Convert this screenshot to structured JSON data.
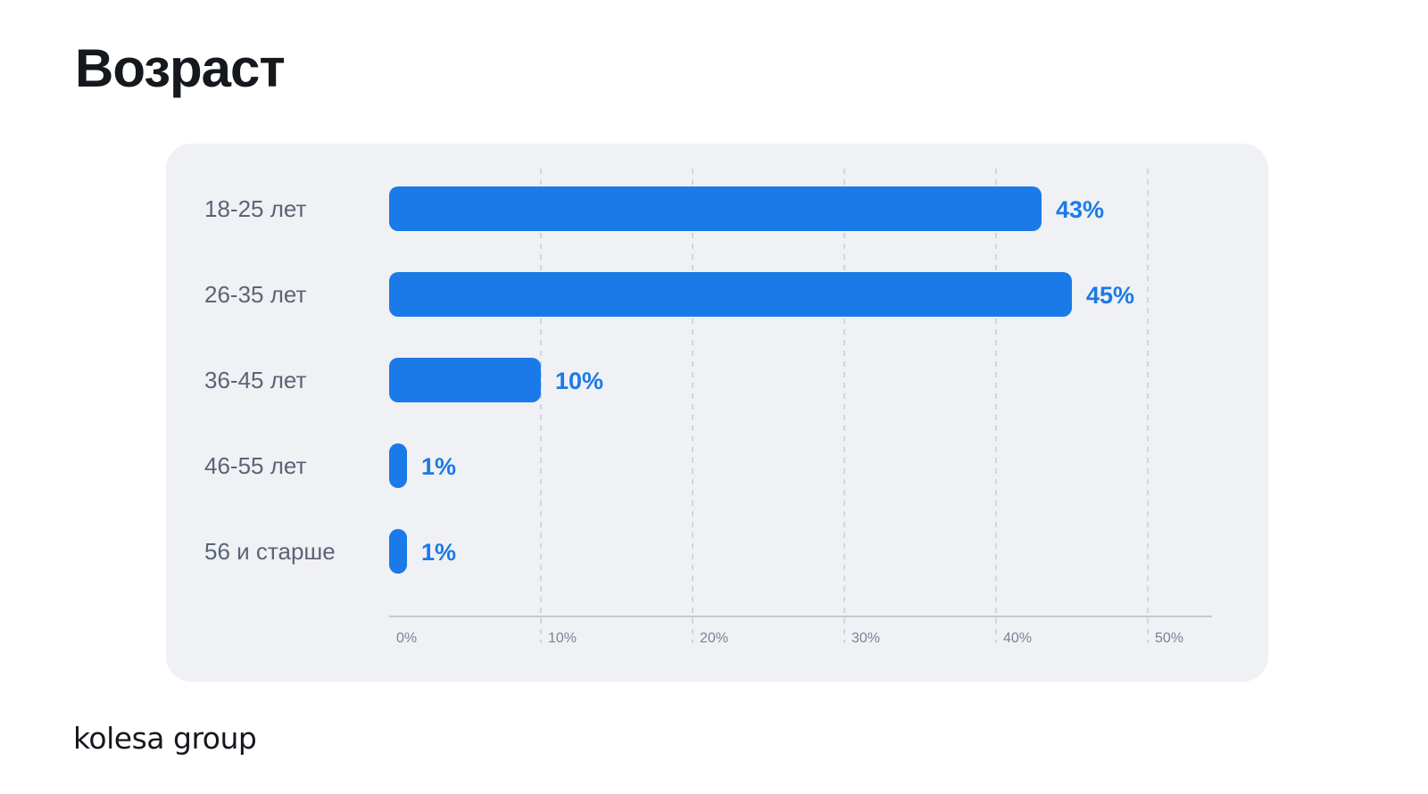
{
  "page": {
    "title": "Возраст",
    "logo": "kolesa group"
  },
  "colors": {
    "bar": "#1a7ae8",
    "value_label": "#1a7ae8",
    "category_label": "#5b6476",
    "grid": "#c9ccd3",
    "axis": "#b8bcc5",
    "card_background": "#f0f1f4",
    "title": "#15181d"
  },
  "chart_data": {
    "type": "bar",
    "orientation": "horizontal",
    "categories": [
      "18-25 лет",
      "26-35 лет",
      "36-45 лет",
      "46-55 лет",
      "56 и старше"
    ],
    "values": [
      43,
      45,
      10,
      1,
      1
    ],
    "value_labels": [
      "43%",
      "45%",
      "10%",
      "1%",
      "1%"
    ],
    "xlim": [
      0,
      50
    ],
    "x_ticks": [
      0,
      10,
      20,
      30,
      40,
      50
    ],
    "x_tick_labels": [
      "0%",
      "10%",
      "20%",
      "30%",
      "40%",
      "50%"
    ],
    "grid": "dashed vertical",
    "legend": "none"
  }
}
